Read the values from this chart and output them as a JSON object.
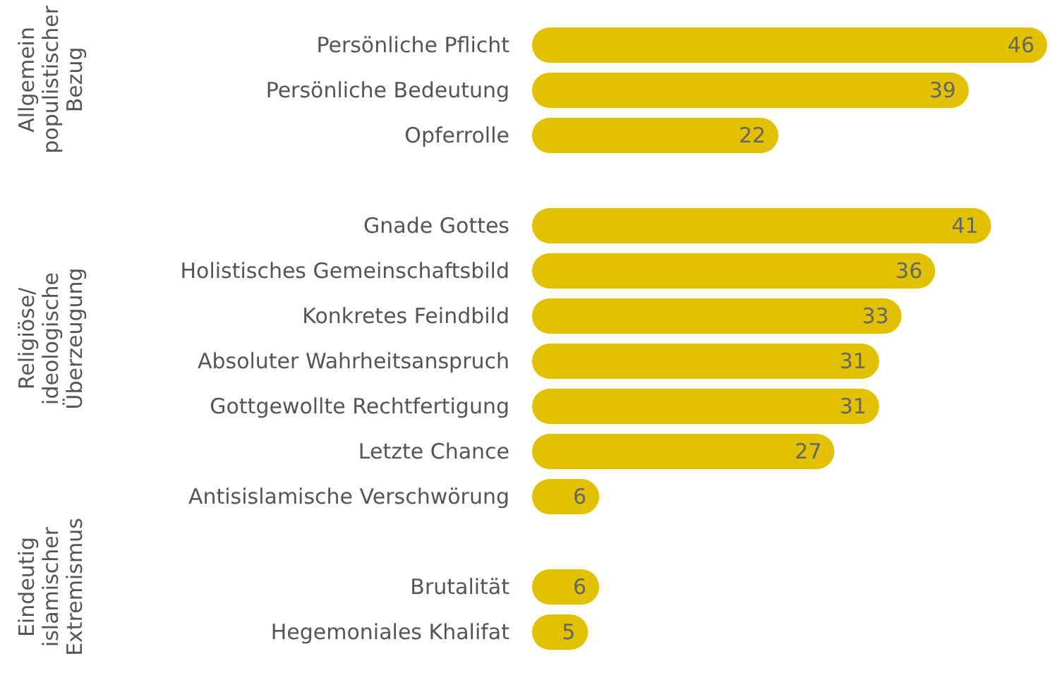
{
  "chart_data": {
    "type": "bar",
    "orientation": "horizontal",
    "categories": [
      "Persönliche Pflicht",
      "Persönliche Bedeutung",
      "Opferrolle",
      null,
      "Gnade Gottes",
      "Holistisches Gemeinschaftsbild",
      "Konkretes Feindbild",
      "Absoluter Wahrheitsanspruch",
      "Gottgewollte Rechtfertigung",
      "Letzte Chance",
      "Antisislamische Verschwörung",
      null,
      "Brutalität",
      "Hegemoniales Khalifat"
    ],
    "values": [
      46,
      39,
      22,
      null,
      41,
      36,
      33,
      31,
      31,
      27,
      6,
      null,
      6,
      5
    ],
    "color": "#e2c200",
    "data_labels": true,
    "annotations": [
      "Allgemein populistischer Bezug",
      "Religiöse/ ideologische Überzeugung",
      "Eindeutig islamischer Extremismus"
    ]
  }
}
